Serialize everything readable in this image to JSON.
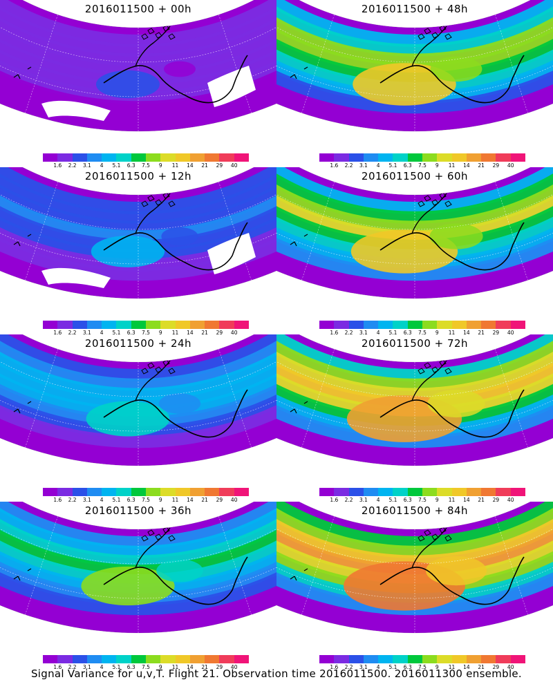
{
  "panels": [
    {
      "title": "2016011500 + 00h",
      "lead": "00h",
      "col": 0,
      "row": 0,
      "level": 0.1
    },
    {
      "title": "2016011500 + 48h",
      "lead": "48h",
      "col": 1,
      "row": 0,
      "level": 0.58
    },
    {
      "title": "2016011500 + 12h",
      "lead": "12h",
      "col": 0,
      "row": 1,
      "level": 0.22
    },
    {
      "title": "2016011500 + 60h",
      "lead": "60h",
      "col": 1,
      "row": 1,
      "level": 0.62
    },
    {
      "title": "2016011500 + 24h",
      "lead": "24h",
      "col": 0,
      "row": 2,
      "level": 0.34
    },
    {
      "title": "2016011500 + 72h",
      "lead": "72h",
      "col": 1,
      "row": 2,
      "level": 0.72
    },
    {
      "title": "2016011500 + 36h",
      "lead": "36h",
      "col": 0,
      "row": 3,
      "level": 0.46
    },
    {
      "title": "2016011500 + 84h",
      "lead": "84h",
      "col": 1,
      "row": 3,
      "level": 0.8
    }
  ],
  "colorbar": {
    "colors": [
      "#9400d3",
      "#7b2be2",
      "#2b50e8",
      "#1f8cf2",
      "#00b4f0",
      "#00d2c8",
      "#00c83c",
      "#8cdc1e",
      "#dcdc28",
      "#f0c828",
      "#f0a032",
      "#f07832",
      "#f03c5a",
      "#f01478"
    ],
    "labels": [
      "1.6",
      "2.2",
      "3.1",
      "4",
      "5.1",
      "6.3",
      "7.5",
      "9",
      "11",
      "14",
      "21",
      "29",
      "40"
    ]
  },
  "caption": "Signal Variance for u,v,T. Flight 21. Observation time 2016011500. 2016011300 ensemble."
}
